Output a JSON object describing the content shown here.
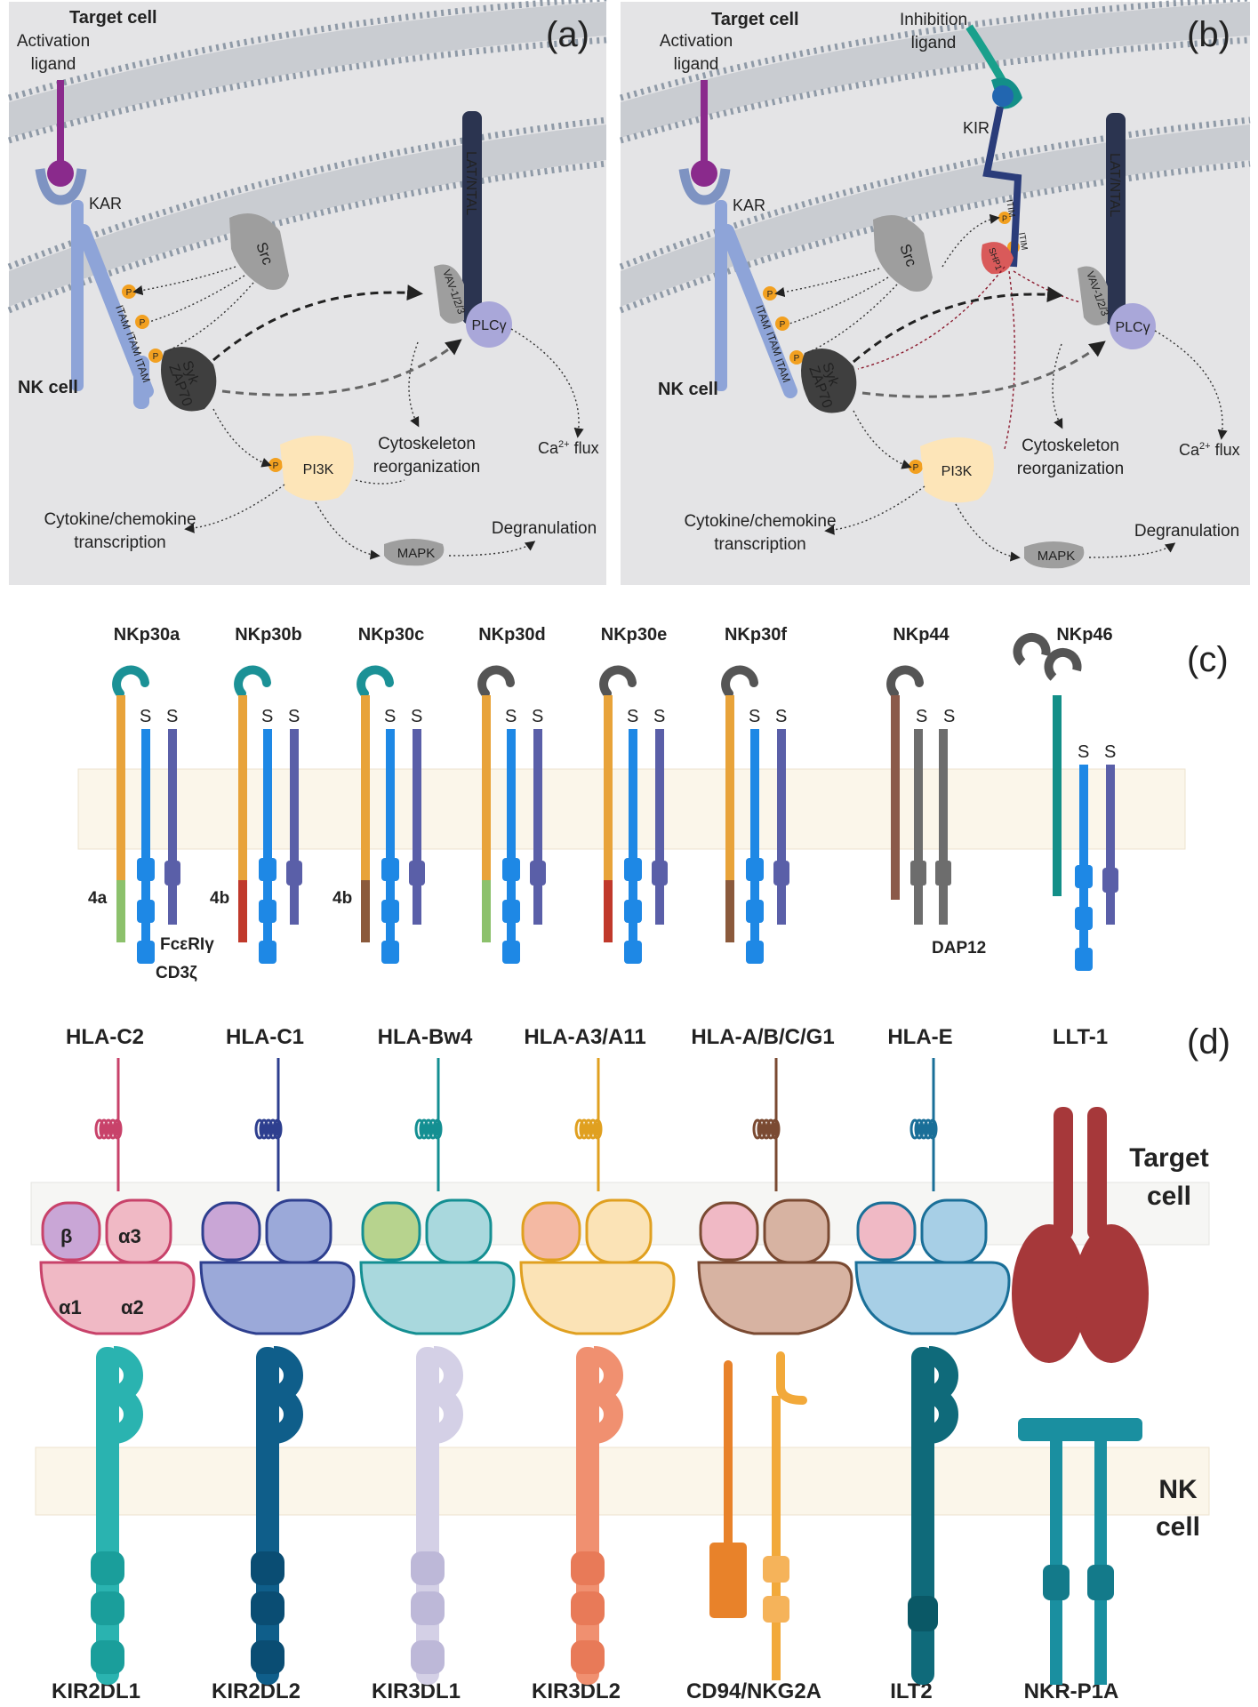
{
  "panel_a": {
    "tag": "(a)",
    "target_cell": "Target cell",
    "activation_ligand": [
      "Activation",
      "ligand"
    ],
    "kar": "KAR",
    "src": "Src",
    "lat": "LAT/NTAL",
    "vav": "VAV-1/2/3",
    "plc": "PLCγ",
    "itam": "ITAM",
    "syk": "Syk",
    "zap": "ZAP70",
    "p": "P",
    "nk_cell": "NK cell",
    "pi3k": "PI3K",
    "cyto": [
      "Cytoskeleton",
      "reorganization"
    ],
    "ca": "Ca",
    "ca_sup": "2+",
    "ca_tail": " flux",
    "cytokine": [
      "Cytokine/chemokine",
      "transcription"
    ],
    "mapk": "MAPK",
    "degran": "Degranulation"
  },
  "panel_b": {
    "tag": "(b)",
    "target_cell": "Target cell",
    "activation_ligand": [
      "Activation",
      "ligand"
    ],
    "inhibition_ligand": [
      "Inhibition",
      "ligand"
    ],
    "kir": "KIR",
    "itim": "ITIM",
    "shp": "SHP1",
    "kar": "KAR",
    "src": "Src",
    "lat": "LAT/NTAL",
    "vav": "VAV-1/2/3",
    "plc": "PLCγ",
    "itam": "ITAM",
    "syk": "Syk",
    "zap": "ZAP70",
    "p": "P",
    "nk_cell": "NK cell",
    "pi3k": "PI3K",
    "cyto": [
      "Cytoskeleton",
      "reorganization"
    ],
    "ca": "Ca",
    "ca_sup": "2+",
    "ca_tail": " flux",
    "cytokine": [
      "Cytokine/chemokine",
      "transcription"
    ],
    "mapk": "MAPK",
    "degran": "Degranulation"
  },
  "panel_c": {
    "tag": "(c)",
    "receptors": [
      {
        "name": "NKp30a",
        "color": "#e8a33a",
        "tail": "4a",
        "tail_color": "#8cc16c"
      },
      {
        "name": "NKp30b",
        "color": "#e8a33a",
        "tail": "4b",
        "tail_color": "#c0392b"
      },
      {
        "name": "NKp30c",
        "color": "#e8a33a",
        "tail": "4b",
        "tail_color": "#8b5a3c"
      },
      {
        "name": "NKp30d",
        "color": "#e8a33a",
        "tail": "",
        "tail_color": "#8cc16c"
      },
      {
        "name": "NKp30e",
        "color": "#e8a33a",
        "tail": "",
        "tail_color": "#c0392b"
      },
      {
        "name": "NKp30f",
        "color": "#e8a33a",
        "tail": "",
        "tail_color": "#8b5a3c"
      },
      {
        "name": "NKp44",
        "color": "#8b5a4a"
      },
      {
        "name": "NKp46",
        "color": "#138f88"
      }
    ],
    "ss": [
      "S",
      "S"
    ],
    "fceri": "FcεRIγ",
    "cd3z": "CD3ζ",
    "dap12": "DAP12",
    "colors": {
      "cd3z": "#1e88e5",
      "fceri": "#5a5fa8",
      "dap12": "#6d6d6d",
      "head_teal": "#1b9196",
      "head_grey": "#555555"
    }
  },
  "panel_d": {
    "tag": "(d)",
    "target_cell": [
      "Target",
      "cell"
    ],
    "nk_cell": [
      "NK",
      "cell"
    ],
    "ligands": [
      {
        "name": "HLA-C2",
        "color": "#c8426a",
        "fill": "#f0b9c5",
        "beta": "#c9a6d6"
      },
      {
        "name": "HLA-C1",
        "color": "#2e3f8f",
        "fill": "#9ba9d9",
        "beta": "#c9a6d6"
      },
      {
        "name": "HLA-Bw4",
        "color": "#148f92",
        "fill": "#a9d8dd",
        "beta": "#b7d38e"
      },
      {
        "name": "HLA-A3/A11",
        "color": "#e0a020",
        "fill": "#fbe3b6",
        "beta": "#f4b9a3"
      },
      {
        "name": "HLA-A/B/C/G1",
        "color": "#7a4a32",
        "fill": "#d7b3a2",
        "beta": "#f0b9c5"
      },
      {
        "name": "HLA-E",
        "color": "#1a6f98",
        "fill": "#a7cfe6",
        "beta": "#f0b9c5"
      },
      {
        "name": "LLT-1",
        "color": "#a6383a"
      }
    ],
    "domains": {
      "beta": "β",
      "a1": "α1",
      "a2": "α2",
      "a3": "α3"
    },
    "receptors": [
      {
        "name": "KIR2DL1",
        "color": "#2ab3b0",
        "dark": "#1a9e9b"
      },
      {
        "name": "KIR2DL2",
        "color": "#0f5e8a",
        "dark": "#0a4d73"
      },
      {
        "name": "KIR3DL1",
        "color": "#d4d0e6",
        "dark": "#bdb8d8"
      },
      {
        "name": "KIR3DL2",
        "color": "#f09070",
        "dark": "#e87a58"
      },
      {
        "name": "CD94/NKG2A",
        "color": "#e8822a",
        "dark": "#f2a93a"
      },
      {
        "name": "ILT2",
        "color": "#0f6a7a",
        "dark": "#0a5866"
      },
      {
        "name": "NKR-P1A",
        "color": "#1a8fa0",
        "dark": "#137a8a"
      }
    ]
  }
}
